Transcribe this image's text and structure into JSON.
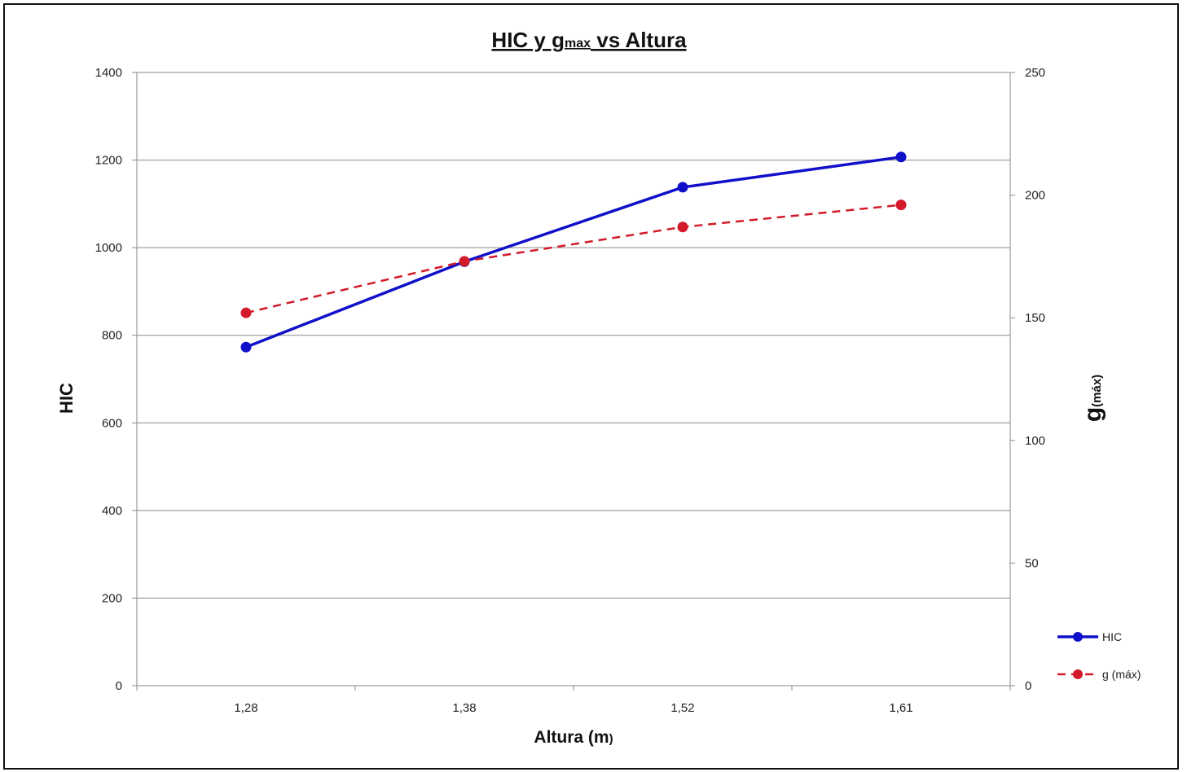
{
  "chart_data": {
    "type": "line",
    "title": {
      "prefix": "HIC y g",
      "subscript": "max",
      "suffix": " vs Altura"
    },
    "xlabel": {
      "main": "Altura (m",
      "close": ")"
    },
    "ylabel_left": "HIC",
    "ylabel_right": {
      "main": "g",
      "subscript": "(máx)"
    },
    "categories": [
      "1,28",
      "1,38",
      "1,52",
      "1,61"
    ],
    "ylim_left": [
      0,
      1400
    ],
    "yticks_left": [
      "0",
      "200",
      "400",
      "600",
      "800",
      "1000",
      "1200",
      "1400"
    ],
    "ylim_right": [
      0,
      250
    ],
    "yticks_right": [
      "0",
      "50",
      "100",
      "150",
      "200",
      "250"
    ],
    "grid": true,
    "legend_placement": "bottom-right",
    "series": [
      {
        "name": "HIC",
        "axis": "left",
        "style": "solid",
        "color": "#1010c8",
        "values": [
          773,
          968,
          1138,
          1207
        ]
      },
      {
        "name": "g (máx)",
        "axis": "right",
        "style": "dashed",
        "color": "#d21a2a",
        "values": [
          152,
          173,
          187,
          196
        ]
      }
    ]
  }
}
